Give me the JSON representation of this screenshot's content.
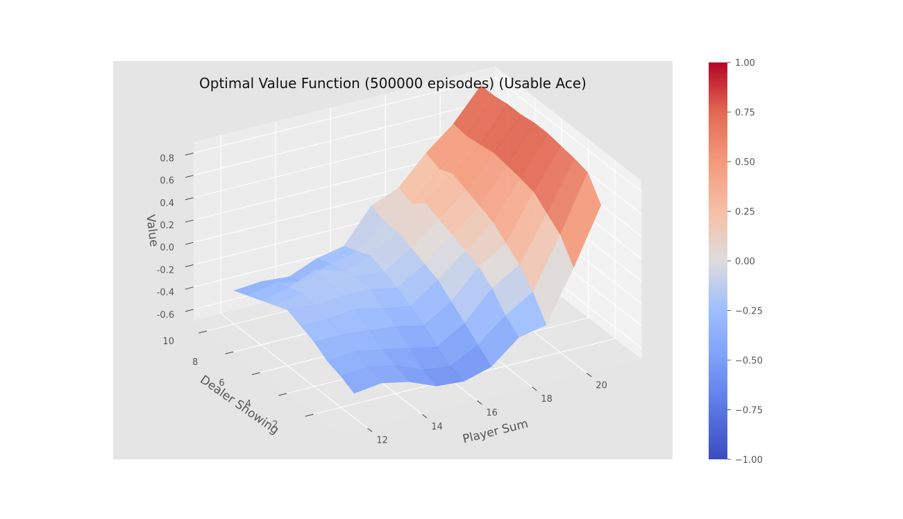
{
  "chart_data": {
    "type": "surface",
    "title": "Optimal Value Function (500000 episodes) (Usable Ace)",
    "xlabel": "Player Sum",
    "ylabel": "Dealer Showing",
    "zlabel": "Value",
    "colormap": "coolwarm",
    "grid": true,
    "x": [
      12,
      13,
      14,
      15,
      16,
      17,
      18,
      19,
      20,
      21
    ],
    "y": [
      1,
      2,
      3,
      4,
      5,
      6,
      7,
      8,
      9,
      10
    ],
    "xlim": [
      11,
      22
    ],
    "ylim": [
      0,
      11
    ],
    "zlim": [
      -0.7,
      0.9
    ],
    "x_ticks": [
      "12",
      "14",
      "16",
      "18",
      "20"
    ],
    "y_ticks": [
      "2",
      "4",
      "6",
      "8",
      "10"
    ],
    "z_ticks": [
      "-0.6",
      "-0.4",
      "-0.2",
      "0.0",
      "0.2",
      "0.4",
      "0.6",
      "0.8"
    ],
    "z_values": [
      [
        -0.48,
        -0.45,
        -0.5,
        -0.6,
        -0.62,
        -0.55,
        -0.35,
        -0.3,
        0.15,
        0.65
      ],
      [
        -0.42,
        -0.4,
        -0.45,
        -0.55,
        -0.58,
        -0.45,
        -0.25,
        -0.1,
        0.35,
        0.85
      ],
      [
        -0.38,
        -0.35,
        -0.4,
        -0.45,
        -0.5,
        -0.35,
        -0.1,
        0.05,
        0.45,
        0.88
      ],
      [
        -0.3,
        -0.3,
        -0.32,
        -0.35,
        -0.4,
        -0.25,
        0.0,
        0.15,
        0.55,
        0.9
      ],
      [
        -0.25,
        -0.25,
        -0.22,
        -0.28,
        -0.32,
        -0.15,
        0.05,
        0.25,
        0.58,
        0.92
      ],
      [
        -0.2,
        -0.22,
        -0.2,
        -0.2,
        -0.25,
        -0.1,
        0.1,
        0.3,
        0.6,
        0.92
      ],
      [
        -0.25,
        -0.2,
        -0.18,
        -0.18,
        -0.2,
        -0.05,
        0.15,
        0.35,
        0.62,
        0.9
      ],
      [
        -0.3,
        -0.25,
        -0.15,
        -0.22,
        -0.15,
        0.0,
        0.2,
        0.4,
        0.6,
        0.9
      ],
      [
        -0.35,
        -0.3,
        -0.35,
        -0.25,
        -0.2,
        0.0,
        0.1,
        0.35,
        0.58,
        0.88
      ],
      [
        -0.4,
        -0.38,
        -0.4,
        -0.3,
        -0.25,
        0.05,
        0.15,
        0.4,
        0.6,
        0.88
      ]
    ],
    "colorbar": {
      "min": -1.0,
      "max": 1.0,
      "ticks": [
        "1.00",
        "0.75",
        "0.50",
        "0.25",
        "0.00",
        "−0.25",
        "−0.50",
        "−0.75",
        "−1.00"
      ]
    }
  }
}
